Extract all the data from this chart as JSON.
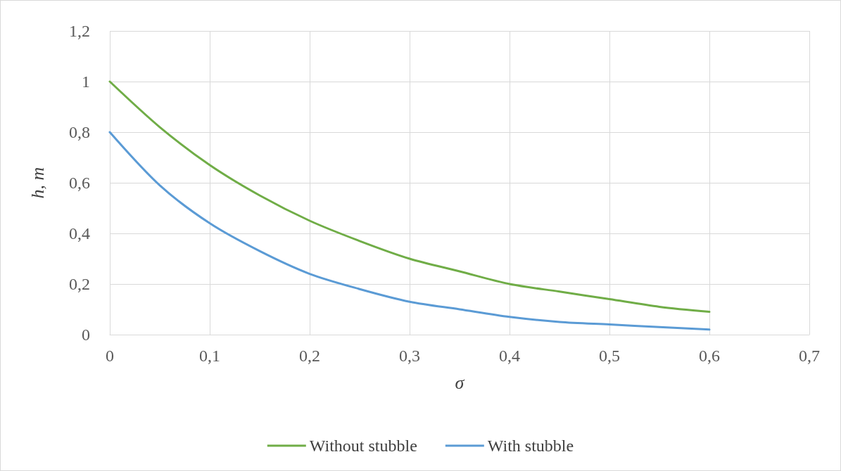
{
  "chart_data": {
    "type": "line",
    "xlabel": "σ",
    "ylabel": "h, m",
    "xlim": [
      0,
      0.7
    ],
    "xticks": [
      0,
      {
        "value": 0.1,
        "label": "0,1"
      },
      {
        "value": 0.2,
        "label": "0,2"
      },
      {
        "value": 0.3,
        "label": "0,3"
      },
      {
        "value": 0.4,
        "label": "0,4"
      },
      {
        "value": 0.5,
        "label": "0,5"
      },
      {
        "value": 0.6,
        "label": "0,6"
      },
      {
        "value": 0.7,
        "label": "0,7"
      }
    ],
    "ylim": [
      0,
      1.2
    ],
    "yticks": [
      0,
      {
        "value": 0.2,
        "label": "0,2"
      },
      {
        "value": 0.4,
        "label": "0,4"
      },
      {
        "value": 0.6,
        "label": "0,6"
      },
      {
        "value": 0.8,
        "label": "0,8"
      },
      1,
      {
        "value": 1.2,
        "label": "1,2"
      }
    ],
    "x": [
      0,
      0.05,
      0.1,
      0.15,
      0.2,
      0.25,
      0.3,
      0.35,
      0.4,
      0.45,
      0.5,
      0.55,
      0.6
    ],
    "series": [
      {
        "name": "Without stubble",
        "color": "#70ad47",
        "values": [
          1,
          0.82,
          0.67,
          0.55,
          0.45,
          0.37,
          0.3,
          0.25,
          0.2,
          0.17,
          0.14,
          0.11,
          0.09
        ]
      },
      {
        "name": "With stubble",
        "color": "#5b9bd5",
        "values": [
          0.8,
          0.59,
          0.44,
          0.33,
          0.24,
          0.18,
          0.13,
          0.1,
          0.07,
          0.05,
          0.04,
          0.03,
          0.02
        ]
      }
    ],
    "grid": true,
    "legend": "bottom",
    "marker": "none",
    "line_style": "solid"
  }
}
